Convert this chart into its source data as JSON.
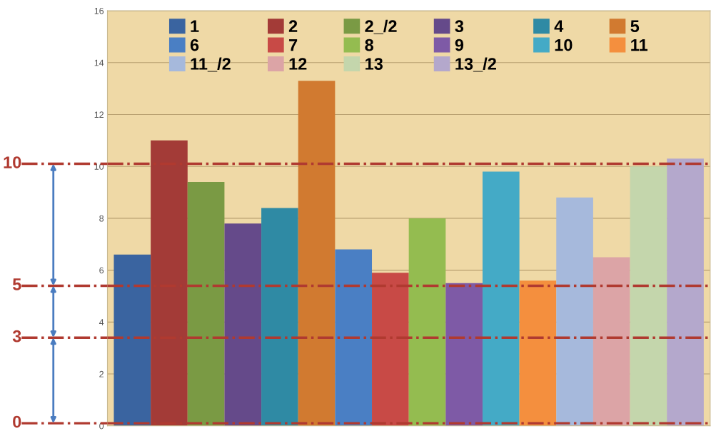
{
  "chart_data": {
    "type": "bar",
    "categories": [
      null
    ],
    "series": [
      {
        "name": "1",
        "color": "#3a64a0",
        "values": [
          6.6
        ]
      },
      {
        "name": "2",
        "color": "#a33b37",
        "values": [
          11.0
        ]
      },
      {
        "name": "2_/2",
        "color": "#7a9a44",
        "values": [
          9.4
        ]
      },
      {
        "name": "3",
        "color": "#654a8a",
        "values": [
          7.8
        ]
      },
      {
        "name": "4",
        "color": "#2f8aa4",
        "values": [
          8.4
        ]
      },
      {
        "name": "5",
        "color": "#d17a30",
        "values": [
          13.3
        ]
      },
      {
        "name": "6",
        "color": "#4a7fc4",
        "values": [
          6.8
        ]
      },
      {
        "name": "7",
        "color": "#c84a46",
        "values": [
          5.9
        ]
      },
      {
        "name": "8",
        "color": "#94bc50",
        "values": [
          8.0
        ]
      },
      {
        "name": "9",
        "color": "#7e5aa6",
        "values": [
          5.5
        ]
      },
      {
        "name": "10",
        "color": "#44aac6",
        "values": [
          9.8
        ]
      },
      {
        "name": "11",
        "color": "#f48f3e",
        "values": [
          5.6
        ]
      },
      {
        "name": "11_/2",
        "color": "#a6b9dc",
        "values": [
          8.8
        ]
      },
      {
        "name": "12",
        "color": "#dca4a6",
        "values": [
          6.5
        ]
      },
      {
        "name": "13",
        "color": "#c4d6ac",
        "values": [
          10.0
        ]
      },
      {
        "name": "13_/2",
        "color": "#b4a8cc",
        "values": [
          10.3
        ]
      }
    ],
    "ylim": [
      0,
      16
    ],
    "yticks": [
      0,
      2,
      4,
      6,
      8,
      10,
      12,
      14,
      16
    ],
    "grid": "y",
    "legend": "top",
    "tick_labels": "y",
    "ref_lines": [
      {
        "axis": "y",
        "value": 10.1,
        "label": "10",
        "color": "#b03a30",
        "line_style": "dashdot"
      },
      {
        "axis": "y",
        "value": 5.4,
        "label": "5",
        "color": "#b03a30",
        "line_style": "dashdot"
      },
      {
        "axis": "y",
        "value": 3.4,
        "label": "3",
        "color": "#b03a30",
        "line_style": "dashdot"
      },
      {
        "axis": "y",
        "value": 0.1,
        "label": "0",
        "color": "#b03a30",
        "line_style": "dashdot"
      }
    ]
  }
}
